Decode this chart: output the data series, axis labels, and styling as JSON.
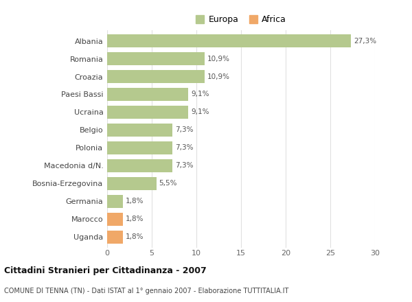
{
  "categories": [
    "Albania",
    "Romania",
    "Croazia",
    "Paesi Bassi",
    "Ucraina",
    "Belgio",
    "Polonia",
    "Macedonia d/N.",
    "Bosnia-Erzegovina",
    "Germania",
    "Marocco",
    "Uganda"
  ],
  "values": [
    27.3,
    10.9,
    10.9,
    9.1,
    9.1,
    7.3,
    7.3,
    7.3,
    5.5,
    1.8,
    1.8,
    1.8
  ],
  "labels": [
    "27,3%",
    "10,9%",
    "10,9%",
    "9,1%",
    "9,1%",
    "7,3%",
    "7,3%",
    "7,3%",
    "5,5%",
    "1,8%",
    "1,8%",
    "1,8%"
  ],
  "continents": [
    "Europa",
    "Europa",
    "Europa",
    "Europa",
    "Europa",
    "Europa",
    "Europa",
    "Europa",
    "Europa",
    "Europa",
    "Africa",
    "Africa"
  ],
  "colors": {
    "Europa": "#b5c98e",
    "Africa": "#f0a868"
  },
  "xlim": [
    0,
    30
  ],
  "xticks": [
    0,
    5,
    10,
    15,
    20,
    25,
    30
  ],
  "title1": "Cittadini Stranieri per Cittadinanza - 2007",
  "title2": "COMUNE DI TENNA (TN) - Dati ISTAT al 1° gennaio 2007 - Elaborazione TUTTITALIA.IT",
  "bg_color": "#ffffff",
  "grid_color": "#e0e0e0",
  "bar_height": 0.72
}
